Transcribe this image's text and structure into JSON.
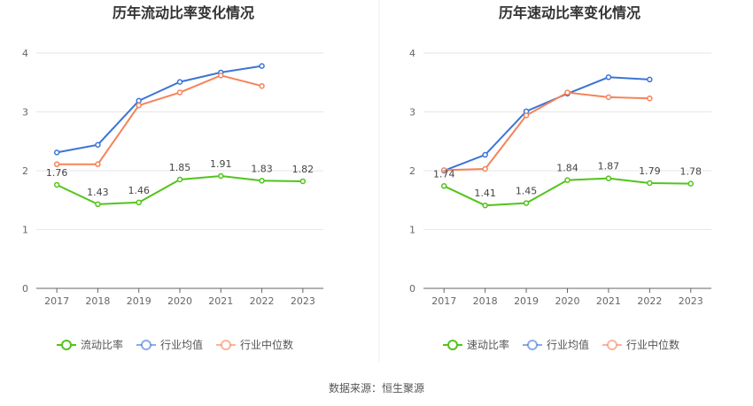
{
  "source": "数据来源：恒生聚源",
  "colors": {
    "main": "#52c41a",
    "avg": "#3b74d6",
    "median": "#f5835a"
  },
  "chart_data": [
    {
      "type": "line",
      "title": "历年流动比率变化情况",
      "categories": [
        "2017",
        "2018",
        "2019",
        "2020",
        "2021",
        "2022",
        "2023"
      ],
      "ylim": [
        0,
        4
      ],
      "yticks": [
        "0",
        "1",
        "2",
        "3",
        "4"
      ],
      "grid": true,
      "legend_position": "bottom",
      "series": [
        {
          "name": "流动比率",
          "values": [
            1.76,
            1.43,
            1.46,
            1.85,
            1.91,
            1.83,
            1.82
          ],
          "labels": [
            "1.76",
            "1.43",
            "1.46",
            "1.85",
            "1.91",
            "1.83",
            "1.82"
          ]
        },
        {
          "name": "行业均值",
          "values": [
            2.31,
            2.44,
            3.19,
            3.51,
            3.67,
            3.78,
            null
          ]
        },
        {
          "name": "行业中位数",
          "values": [
            2.11,
            2.11,
            3.11,
            3.33,
            3.62,
            3.44,
            null
          ]
        }
      ]
    },
    {
      "type": "line",
      "title": "历年速动比率变化情况",
      "categories": [
        "2017",
        "2018",
        "2019",
        "2020",
        "2021",
        "2022",
        "2023"
      ],
      "ylim": [
        0,
        4
      ],
      "yticks": [
        "0",
        "1",
        "2",
        "3",
        "4"
      ],
      "grid": true,
      "legend_position": "bottom",
      "series": [
        {
          "name": "速动比率",
          "values": [
            1.74,
            1.41,
            1.45,
            1.84,
            1.87,
            1.79,
            1.78
          ],
          "labels": [
            "1.74",
            "1.41",
            "1.45",
            "1.84",
            "1.87",
            "1.79",
            "1.78"
          ]
        },
        {
          "name": "行业均值",
          "values": [
            2.0,
            2.27,
            3.01,
            3.31,
            3.59,
            3.55,
            null
          ]
        },
        {
          "name": "行业中位数",
          "values": [
            2.01,
            2.03,
            2.94,
            3.33,
            3.25,
            3.23,
            null
          ]
        }
      ]
    }
  ]
}
